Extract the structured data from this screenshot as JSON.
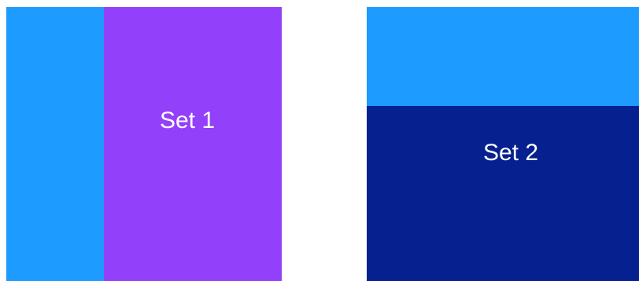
{
  "sets": [
    {
      "label": "Set 1",
      "split": "vertical",
      "colors": {
        "primary": "#1E9BFF",
        "secondary": "#9340FA"
      }
    },
    {
      "label": "Set 2",
      "split": "horizontal",
      "colors": {
        "primary": "#1E9BFF",
        "secondary": "#06218F"
      }
    }
  ]
}
